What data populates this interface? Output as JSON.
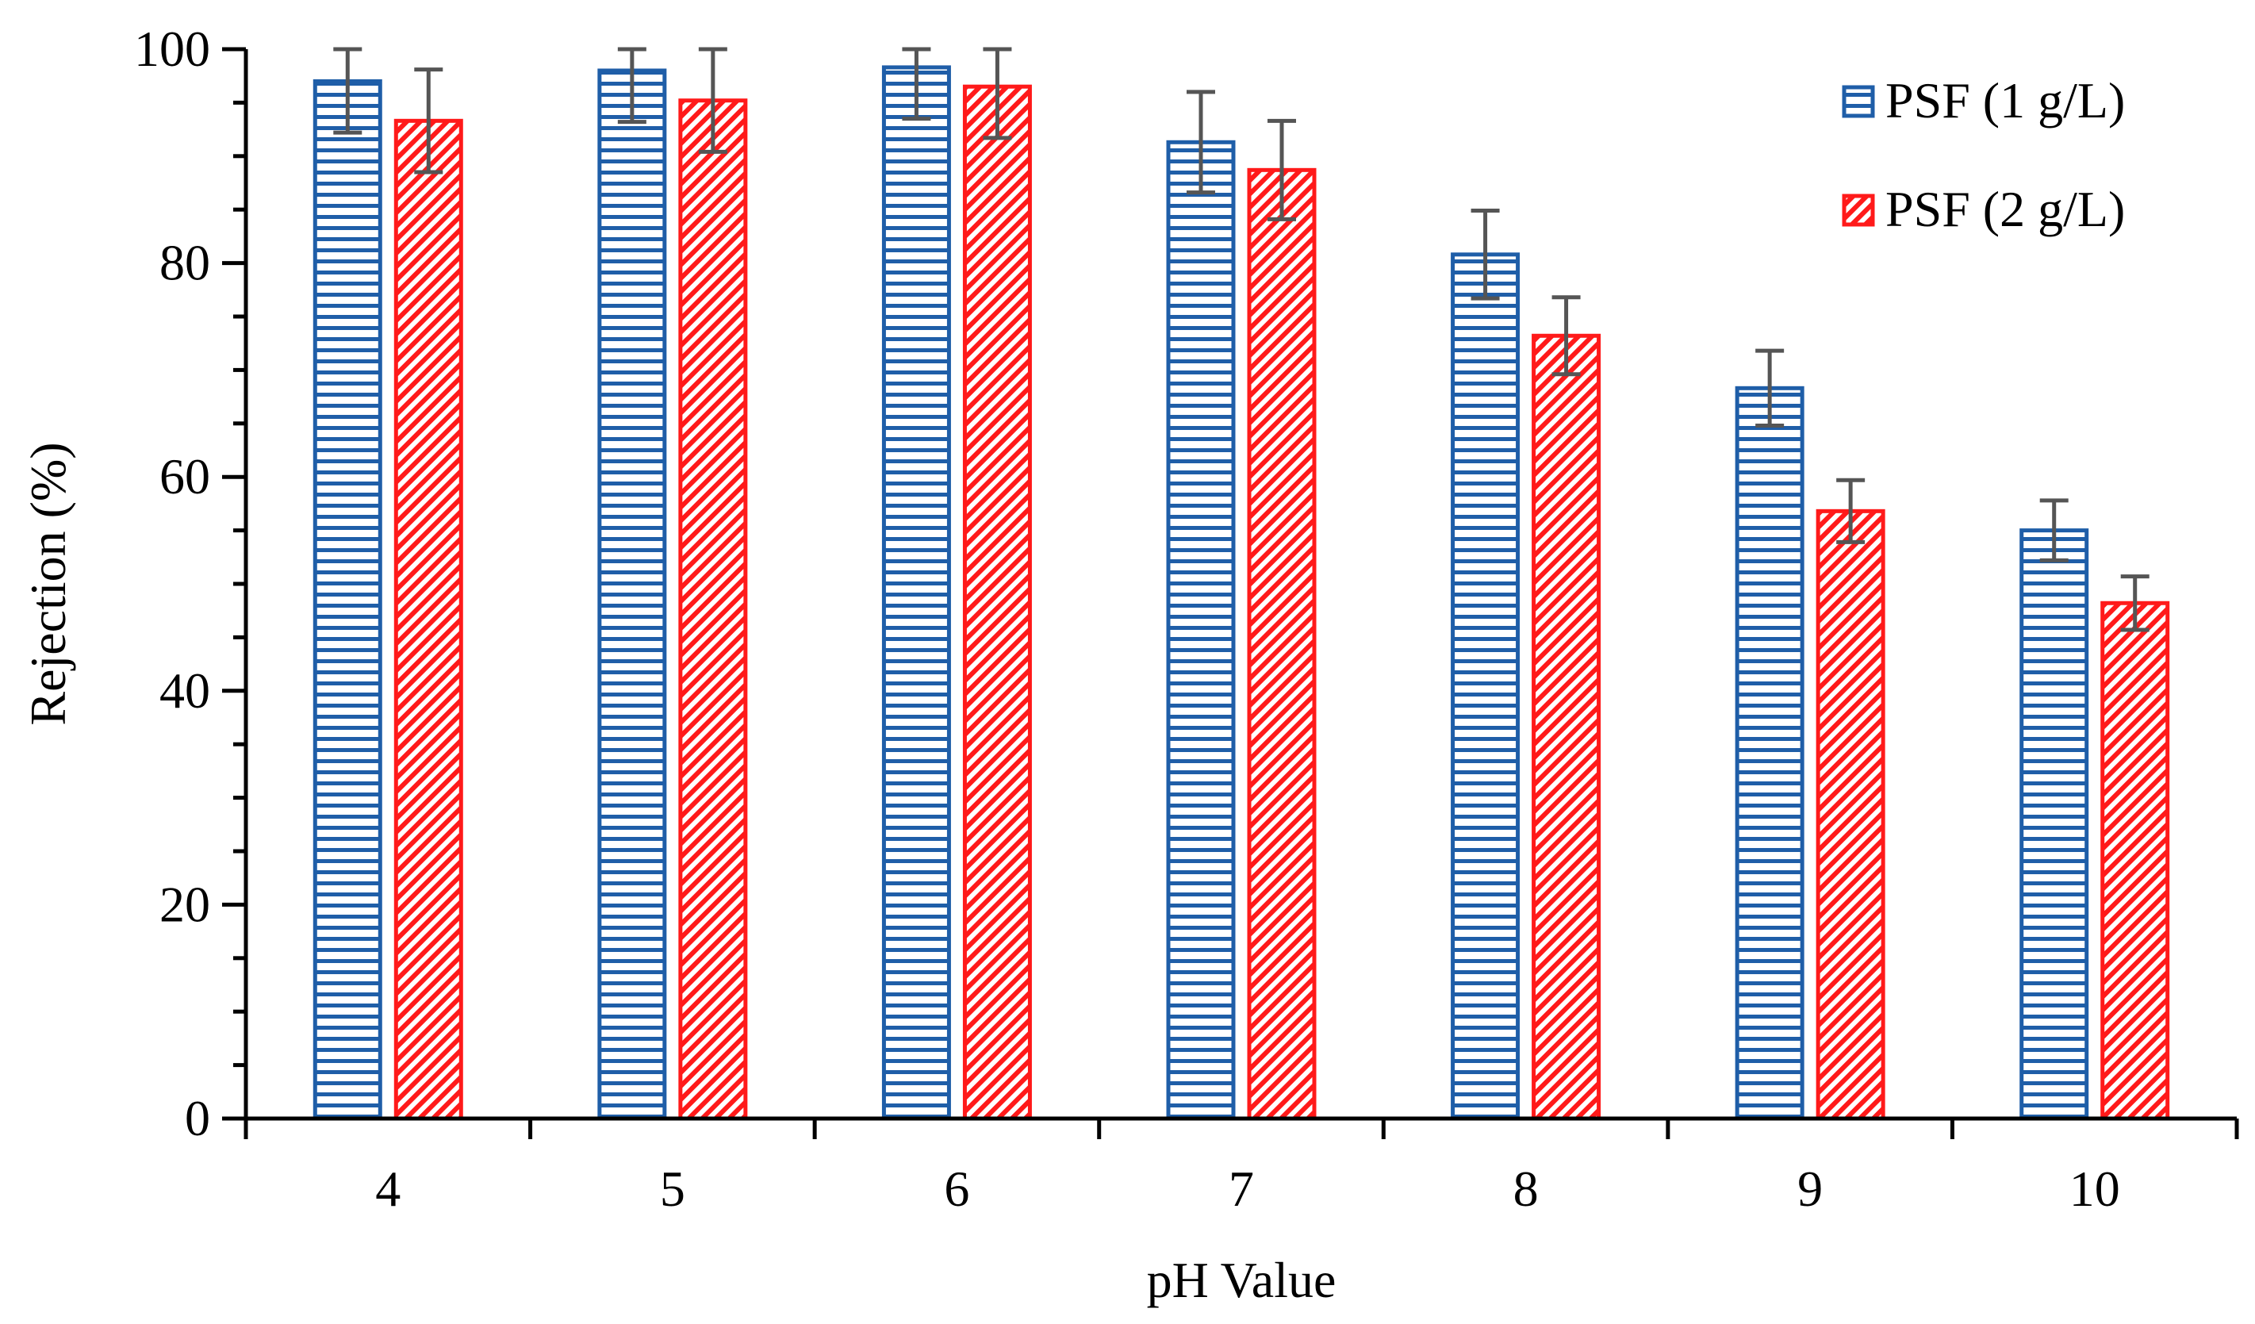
{
  "chart_data": {
    "type": "bar",
    "title": "",
    "xlabel": "pH Value",
    "ylabel": "Rejection (%)",
    "categories": [
      "4",
      "5",
      "6",
      "7",
      "8",
      "9",
      "10"
    ],
    "ylim": [
      0,
      100
    ],
    "yticks": [
      "0",
      "20",
      "40",
      "60",
      "80",
      "100"
    ],
    "ytick_values": [
      0,
      20,
      40,
      60,
      80,
      100
    ],
    "y_minor_step": 5,
    "grid": false,
    "legend_position": "top-right",
    "series": [
      {
        "name": "PSF (1 g/L)",
        "values": [
          97,
          98,
          98.3,
          91.3,
          80.8,
          68.3,
          55
        ],
        "errors": [
          4.8,
          4.8,
          4.8,
          4.7,
          4.1,
          3.5,
          2.8
        ],
        "color": "#1f5ea8",
        "pattern": "horizontal-lines"
      },
      {
        "name": "PSF (2 g/L)",
        "values": [
          93.3,
          95.2,
          96.5,
          88.7,
          73.2,
          56.8,
          48.2
        ],
        "errors": [
          4.8,
          4.8,
          4.8,
          4.6,
          3.6,
          2.9,
          2.5
        ],
        "color": "#ff1a1a",
        "pattern": "diagonal-hatch"
      }
    ],
    "error_bar_color": "#555555"
  }
}
